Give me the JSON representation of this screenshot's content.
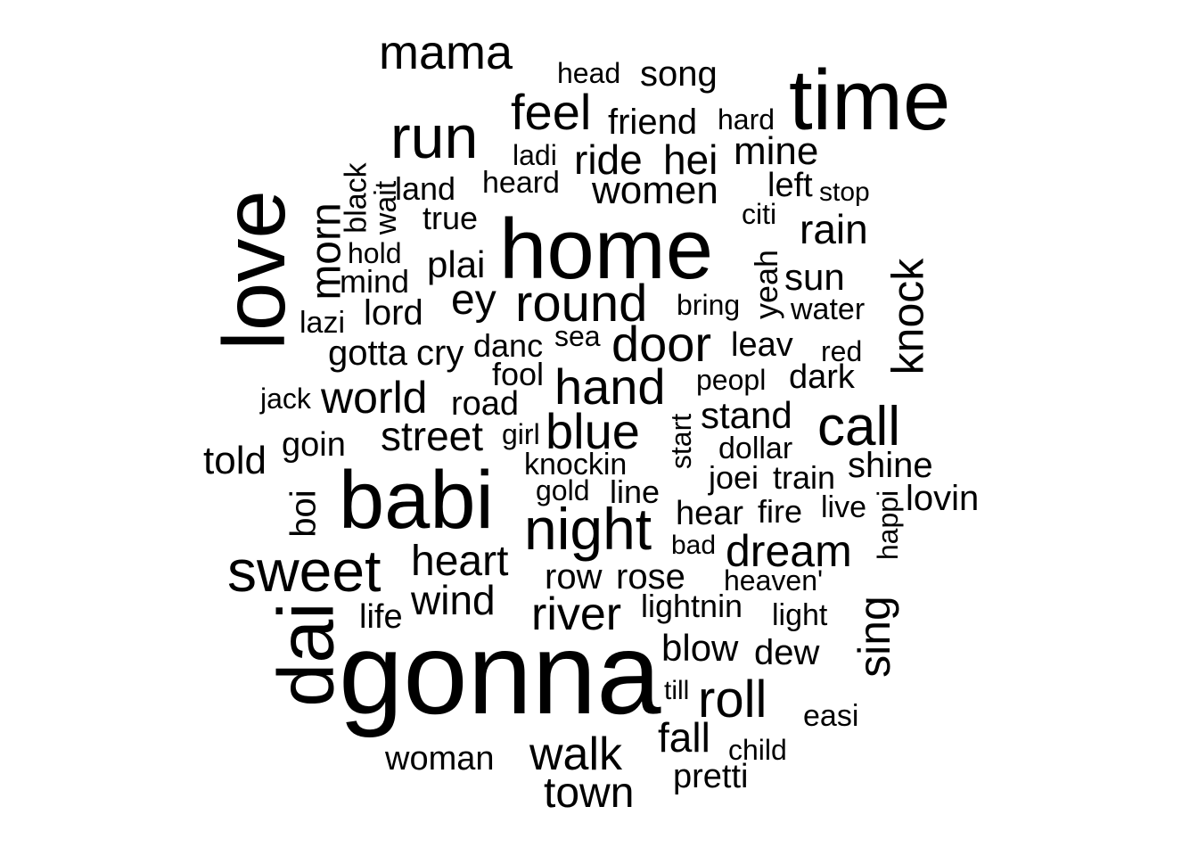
{
  "words": [
    "gonna",
    "home",
    "babi",
    "time",
    "love",
    "dai",
    "sweet",
    "night",
    "run",
    "mama",
    "feel",
    "round",
    "hand",
    "blue",
    "call",
    "door",
    "river",
    "roll",
    "walk",
    "town",
    "street",
    "world",
    "heart",
    "wind",
    "dream",
    "stand",
    "knock",
    "sing",
    "morn",
    "rain",
    "sun",
    "women",
    "ride",
    "hei",
    "mine",
    "plai",
    "ey",
    "song",
    "friend",
    "head",
    "hard",
    "ladi",
    "heard",
    "land",
    "true",
    "black",
    "wait",
    "hold",
    "mind",
    "lord",
    "lazi",
    "gotta",
    "cry",
    "danc",
    "sea",
    "leav",
    "bring",
    "water",
    "yeah",
    "red",
    "fool",
    "peopl",
    "dark",
    "jack",
    "road",
    "girl",
    "goin",
    "told",
    "start",
    "dollar",
    "shine",
    "knockin",
    "joei",
    "train",
    "gold",
    "line",
    "hear",
    "fire",
    "live",
    "happi",
    "lovin",
    "boi",
    "bad",
    "row",
    "rose",
    "heaven'",
    "lightnin",
    "light",
    "life",
    "blow",
    "dew",
    "till",
    "easi",
    "fall",
    "child",
    "pretti",
    "woman",
    "left",
    "stop",
    "citi"
  ]
}
